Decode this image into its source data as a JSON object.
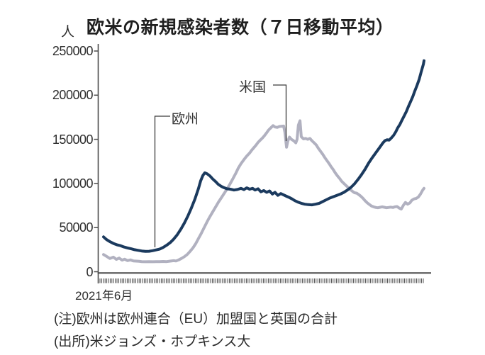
{
  "title": "欧米の新規感染者数（７日移動平均）",
  "unit_label": "人",
  "notes": {
    "note": "(注)欧州は欧州連合（EU）加盟国と英国の合計",
    "source": "(出所)米ジョンズ・ホプキンス大"
  },
  "colors": {
    "europe_line": "#1b3a5e",
    "us_line": "#b1b1c0",
    "axis": "#4a4a4a",
    "annotation_line": "#3a3a3a"
  },
  "chart_data": {
    "type": "line",
    "title": "欧米の新規感染者数（７日移動平均）",
    "ylabel": "人",
    "xlabel": "",
    "x_start_label": "2021年6月",
    "ylim": [
      0,
      250000
    ],
    "y_ticks": [
      0,
      50000,
      100000,
      150000,
      200000,
      250000
    ],
    "y_tick_labels": [
      "0",
      "50000",
      "100000",
      "150000",
      "200000",
      "250000"
    ],
    "grid": false,
    "x_axis_style": "dense-daily-minor-ticks",
    "legend_position": "inline-annotations",
    "annotations": [
      {
        "label": "欧州",
        "series": 0
      },
      {
        "label": "米国",
        "series": 1
      }
    ],
    "series": [
      {
        "name": "欧州",
        "color": "#1b3a5e",
        "points": [
          [
            0.0,
            39500
          ],
          [
            0.009,
            36500
          ],
          [
            0.02,
            34000
          ],
          [
            0.031,
            32000
          ],
          [
            0.042,
            30500
          ],
          [
            0.053,
            29500
          ],
          [
            0.064,
            28000
          ],
          [
            0.075,
            27000
          ],
          [
            0.086,
            26000
          ],
          [
            0.097,
            25000
          ],
          [
            0.108,
            24200
          ],
          [
            0.119,
            23500
          ],
          [
            0.131,
            23000
          ],
          [
            0.142,
            23200
          ],
          [
            0.153,
            23800
          ],
          [
            0.164,
            24700
          ],
          [
            0.175,
            25600
          ],
          [
            0.186,
            27500
          ],
          [
            0.197,
            30000
          ],
          [
            0.208,
            33000
          ],
          [
            0.219,
            37000
          ],
          [
            0.23,
            42000
          ],
          [
            0.241,
            48000
          ],
          [
            0.252,
            55000
          ],
          [
            0.263,
            63000
          ],
          [
            0.274,
            72000
          ],
          [
            0.285,
            82000
          ],
          [
            0.296,
            94000
          ],
          [
            0.303,
            103000
          ],
          [
            0.31,
            109000
          ],
          [
            0.316,
            112000
          ],
          [
            0.323,
            111000
          ],
          [
            0.332,
            108500
          ],
          [
            0.341,
            105000
          ],
          [
            0.35,
            102000
          ],
          [
            0.358,
            99000
          ],
          [
            0.367,
            96800
          ],
          [
            0.376,
            95200
          ],
          [
            0.385,
            94000
          ],
          [
            0.396,
            93500
          ],
          [
            0.407,
            92500
          ],
          [
            0.418,
            93200
          ],
          [
            0.429,
            94500
          ],
          [
            0.438,
            93000
          ],
          [
            0.447,
            95000
          ],
          [
            0.456,
            93500
          ],
          [
            0.465,
            94500
          ],
          [
            0.473,
            92500
          ],
          [
            0.482,
            94000
          ],
          [
            0.491,
            90500
          ],
          [
            0.5,
            92000
          ],
          [
            0.509,
            90000
          ],
          [
            0.518,
            91500
          ],
          [
            0.527,
            88000
          ],
          [
            0.535,
            90000
          ],
          [
            0.544,
            86500
          ],
          [
            0.553,
            88500
          ],
          [
            0.562,
            87000
          ],
          [
            0.571,
            85500
          ],
          [
            0.58,
            84000
          ],
          [
            0.588,
            82500
          ],
          [
            0.597,
            80500
          ],
          [
            0.606,
            79000
          ],
          [
            0.617,
            77500
          ],
          [
            0.628,
            76500
          ],
          [
            0.639,
            76000
          ],
          [
            0.65,
            75800
          ],
          [
            0.661,
            76500
          ],
          [
            0.673,
            77500
          ],
          [
            0.684,
            79500
          ],
          [
            0.695,
            81500
          ],
          [
            0.706,
            83500
          ],
          [
            0.717,
            85000
          ],
          [
            0.728,
            86500
          ],
          [
            0.739,
            88000
          ],
          [
            0.75,
            90000
          ],
          [
            0.761,
            92500
          ],
          [
            0.772,
            95500
          ],
          [
            0.783,
            99500
          ],
          [
            0.794,
            104500
          ],
          [
            0.805,
            110000
          ],
          [
            0.816,
            116000
          ],
          [
            0.827,
            123000
          ],
          [
            0.838,
            129000
          ],
          [
            0.85,
            135000
          ],
          [
            0.861,
            140500
          ],
          [
            0.872,
            146000
          ],
          [
            0.878,
            148500
          ],
          [
            0.885,
            149500
          ],
          [
            0.891,
            149000
          ],
          [
            0.898,
            151500
          ],
          [
            0.905,
            154500
          ],
          [
            0.912,
            158500
          ],
          [
            0.918,
            163000
          ],
          [
            0.925,
            167000
          ],
          [
            0.931,
            171500
          ],
          [
            0.938,
            176500
          ],
          [
            0.945,
            181500
          ],
          [
            0.951,
            187000
          ],
          [
            0.958,
            192500
          ],
          [
            0.965,
            198500
          ],
          [
            0.971,
            204500
          ],
          [
            0.978,
            211000
          ],
          [
            0.985,
            218000
          ],
          [
            0.991,
            226000
          ],
          [
            0.998,
            235000
          ],
          [
            1.0,
            239000
          ]
        ]
      },
      {
        "name": "米国",
        "color": "#b1b1c0",
        "points": [
          [
            0.0,
            19500
          ],
          [
            0.009,
            17500
          ],
          [
            0.02,
            15000
          ],
          [
            0.031,
            16500
          ],
          [
            0.04,
            14000
          ],
          [
            0.049,
            15500
          ],
          [
            0.058,
            13200
          ],
          [
            0.066,
            14200
          ],
          [
            0.075,
            12600
          ],
          [
            0.084,
            13400
          ],
          [
            0.093,
            12300
          ],
          [
            0.102,
            12000
          ],
          [
            0.111,
            11800
          ],
          [
            0.119,
            11500
          ],
          [
            0.131,
            11300
          ],
          [
            0.142,
            11400
          ],
          [
            0.153,
            11300
          ],
          [
            0.164,
            11500
          ],
          [
            0.175,
            11400
          ],
          [
            0.186,
            11600
          ],
          [
            0.197,
            11500
          ],
          [
            0.208,
            12000
          ],
          [
            0.219,
            12500
          ],
          [
            0.226,
            12200
          ],
          [
            0.235,
            13500
          ],
          [
            0.243,
            15000
          ],
          [
            0.252,
            17000
          ],
          [
            0.261,
            19500
          ],
          [
            0.27,
            23000
          ],
          [
            0.279,
            27000
          ],
          [
            0.288,
            32000
          ],
          [
            0.296,
            37500
          ],
          [
            0.305,
            43500
          ],
          [
            0.314,
            50000
          ],
          [
            0.323,
            56500
          ],
          [
            0.332,
            62500
          ],
          [
            0.341,
            68000
          ],
          [
            0.35,
            73500
          ],
          [
            0.358,
            78500
          ],
          [
            0.367,
            83500
          ],
          [
            0.376,
            88500
          ],
          [
            0.385,
            93500
          ],
          [
            0.394,
            99000
          ],
          [
            0.403,
            105000
          ],
          [
            0.412,
            111000
          ],
          [
            0.42,
            117000
          ],
          [
            0.429,
            122500
          ],
          [
            0.438,
            127000
          ],
          [
            0.447,
            131000
          ],
          [
            0.456,
            134500
          ],
          [
            0.462,
            137500
          ],
          [
            0.469,
            140500
          ],
          [
            0.476,
            143500
          ],
          [
            0.482,
            146500
          ],
          [
            0.489,
            149000
          ],
          [
            0.496,
            151500
          ],
          [
            0.502,
            154000
          ],
          [
            0.509,
            157500
          ],
          [
            0.515,
            160500
          ],
          [
            0.522,
            163000
          ],
          [
            0.529,
            165500
          ],
          [
            0.535,
            164000
          ],
          [
            0.542,
            163500
          ],
          [
            0.549,
            164500
          ],
          [
            0.555,
            164800
          ],
          [
            0.562,
            165000
          ],
          [
            0.566,
            158000
          ],
          [
            0.571,
            141000
          ],
          [
            0.575,
            148000
          ],
          [
            0.58,
            152500
          ],
          [
            0.586,
            150000
          ],
          [
            0.593,
            148500
          ],
          [
            0.6,
            146000
          ],
          [
            0.604,
            150000
          ],
          [
            0.608,
            166000
          ],
          [
            0.613,
            171000
          ],
          [
            0.617,
            153000
          ],
          [
            0.624,
            150500
          ],
          [
            0.631,
            151000
          ],
          [
            0.637,
            150000
          ],
          [
            0.644,
            151000
          ],
          [
            0.65,
            148500
          ],
          [
            0.657,
            146000
          ],
          [
            0.664,
            143500
          ],
          [
            0.67,
            140000
          ],
          [
            0.677,
            136500
          ],
          [
            0.684,
            133000
          ],
          [
            0.69,
            129500
          ],
          [
            0.697,
            126000
          ],
          [
            0.704,
            122500
          ],
          [
            0.71,
            119000
          ],
          [
            0.717,
            115500
          ],
          [
            0.723,
            112000
          ],
          [
            0.73,
            108500
          ],
          [
            0.737,
            105500
          ],
          [
            0.743,
            102500
          ],
          [
            0.75,
            100000
          ],
          [
            0.757,
            97500
          ],
          [
            0.763,
            95500
          ],
          [
            0.77,
            93000
          ],
          [
            0.777,
            91000
          ],
          [
            0.783,
            89500
          ],
          [
            0.79,
            89000
          ],
          [
            0.796,
            87500
          ],
          [
            0.803,
            85500
          ],
          [
            0.81,
            83000
          ],
          [
            0.816,
            80500
          ],
          [
            0.823,
            78000
          ],
          [
            0.83,
            76000
          ],
          [
            0.836,
            74500
          ],
          [
            0.843,
            73500
          ],
          [
            0.85,
            72800
          ],
          [
            0.856,
            72500
          ],
          [
            0.863,
            73000
          ],
          [
            0.869,
            73500
          ],
          [
            0.876,
            73000
          ],
          [
            0.883,
            72500
          ],
          [
            0.889,
            72800
          ],
          [
            0.896,
            73200
          ],
          [
            0.903,
            72800
          ],
          [
            0.909,
            73500
          ],
          [
            0.916,
            73800
          ],
          [
            0.923,
            72000
          ],
          [
            0.929,
            71000
          ],
          [
            0.936,
            75500
          ],
          [
            0.942,
            78500
          ],
          [
            0.949,
            76500
          ],
          [
            0.956,
            78000
          ],
          [
            0.962,
            81000
          ],
          [
            0.969,
            82500
          ],
          [
            0.975,
            83000
          ],
          [
            0.982,
            84500
          ],
          [
            0.989,
            88000
          ],
          [
            0.996,
            92500
          ],
          [
            1.0,
            94500
          ]
        ]
      }
    ]
  }
}
